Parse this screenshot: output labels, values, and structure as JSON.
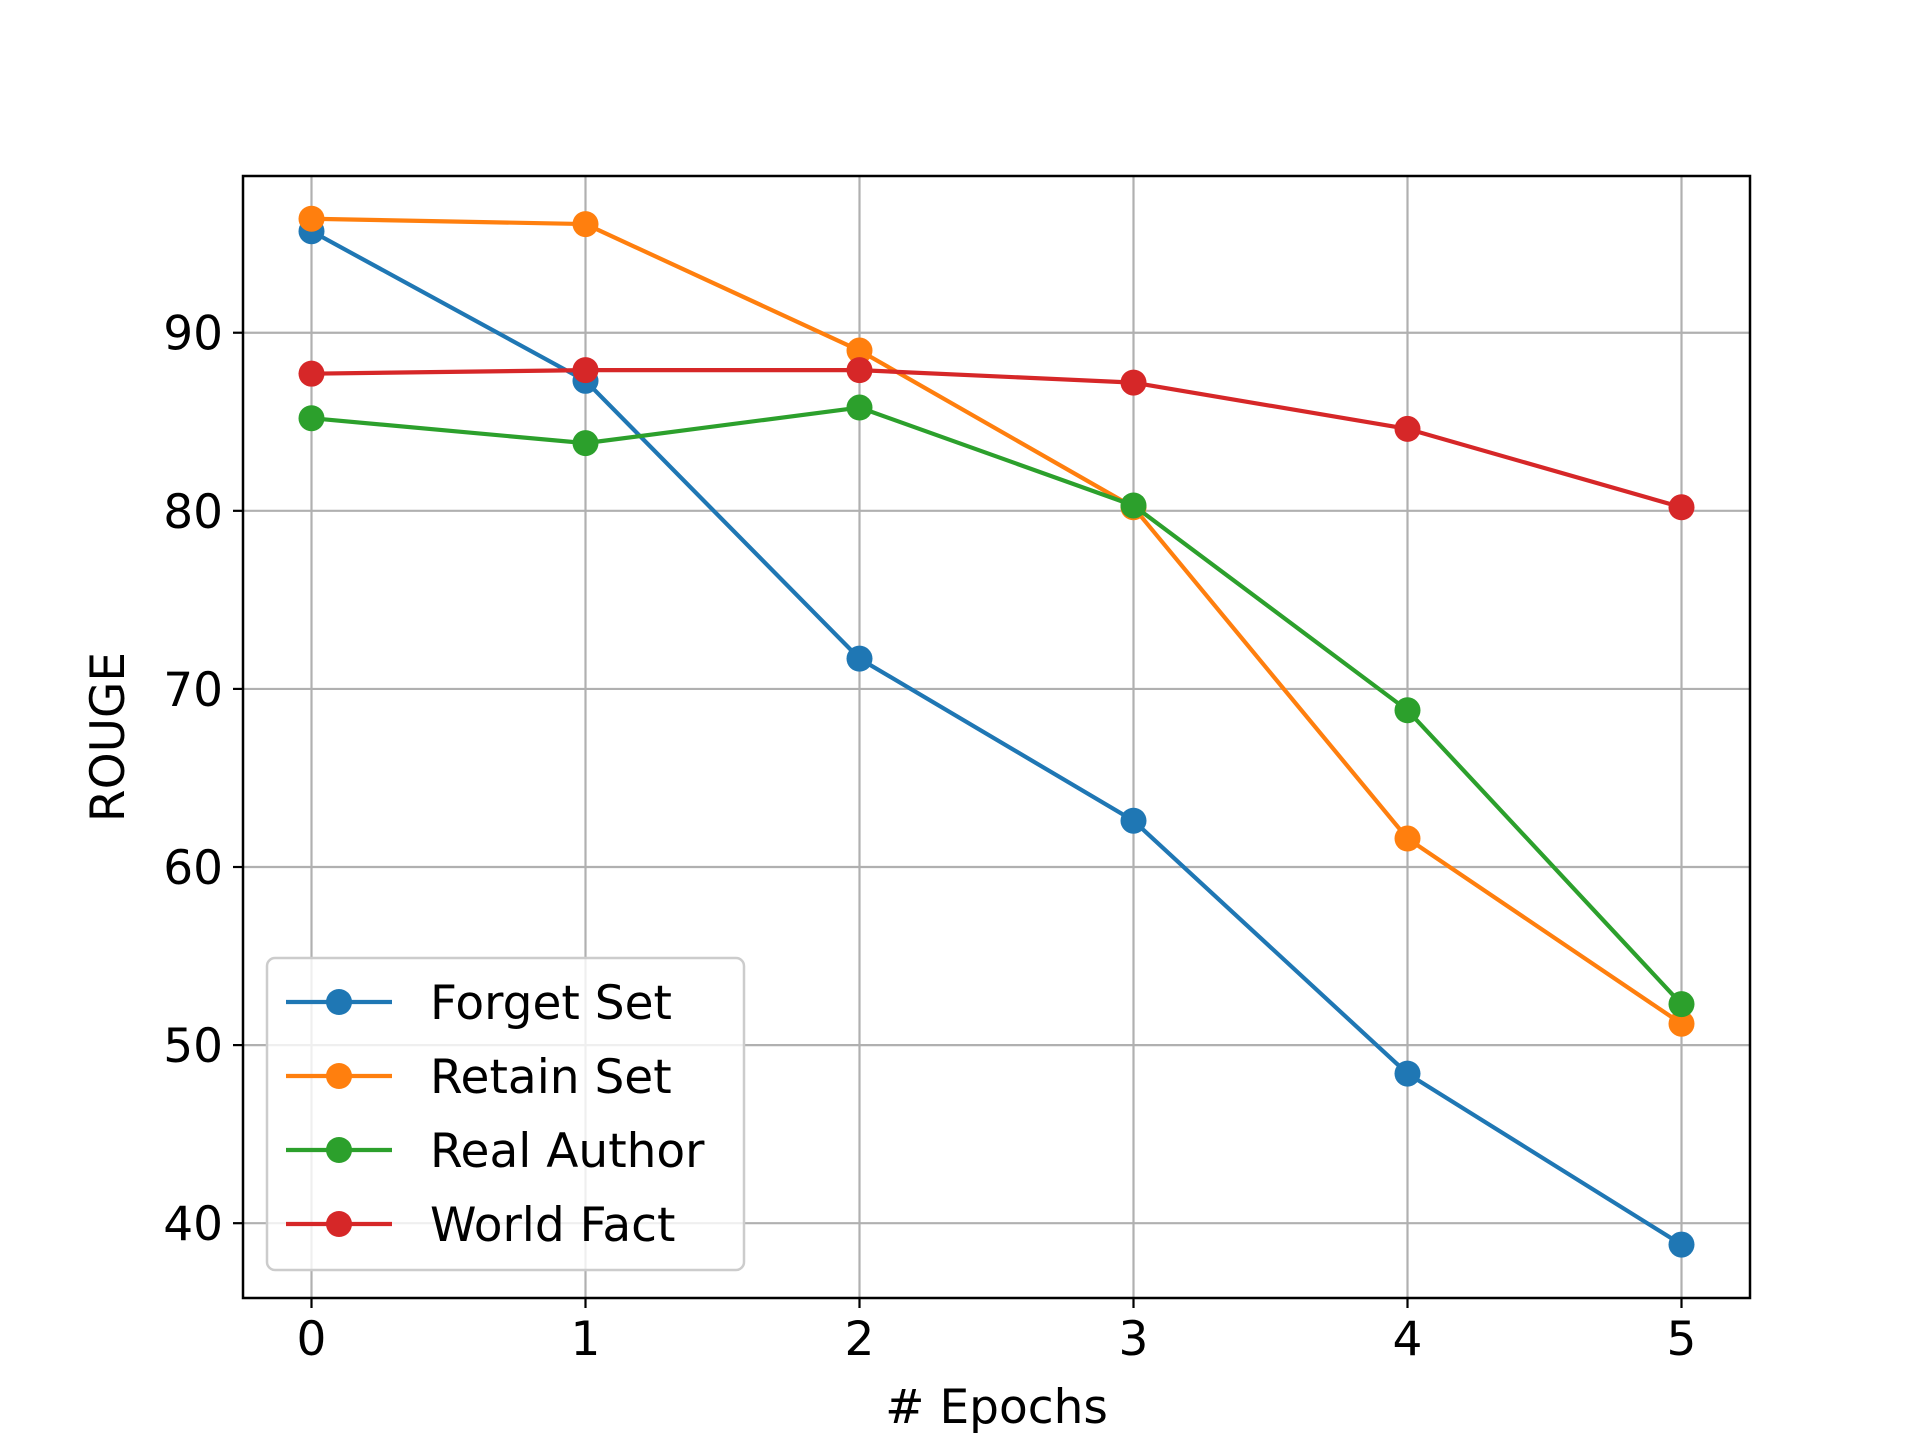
{
  "chart_data": {
    "type": "line",
    "title": "",
    "xlabel": "# Epochs",
    "ylabel": "ROUGE",
    "x": [
      0,
      1,
      2,
      3,
      4,
      5
    ],
    "xlim": [
      -0.25,
      5.25
    ],
    "ylim": [
      35.8,
      98.8
    ],
    "xticks": [
      0,
      1,
      2,
      3,
      4,
      5
    ],
    "yticks": [
      40,
      50,
      60,
      70,
      80,
      90
    ],
    "grid": true,
    "legend_position": "lower-left",
    "series": [
      {
        "name": "Forget Set",
        "color": "#1f77b4",
        "values": [
          95.7,
          87.3,
          71.7,
          62.6,
          48.4,
          38.8
        ]
      },
      {
        "name": "Retain Set",
        "color": "#ff7f0e",
        "values": [
          96.4,
          96.1,
          89.0,
          80.2,
          61.6,
          51.2
        ]
      },
      {
        "name": "Real Author",
        "color": "#2ca02c",
        "values": [
          85.2,
          83.8,
          85.8,
          80.3,
          68.8,
          52.3
        ]
      },
      {
        "name": "World Fact",
        "color": "#d62728",
        "values": [
          87.7,
          87.9,
          87.9,
          87.2,
          84.6,
          80.2
        ]
      }
    ]
  }
}
